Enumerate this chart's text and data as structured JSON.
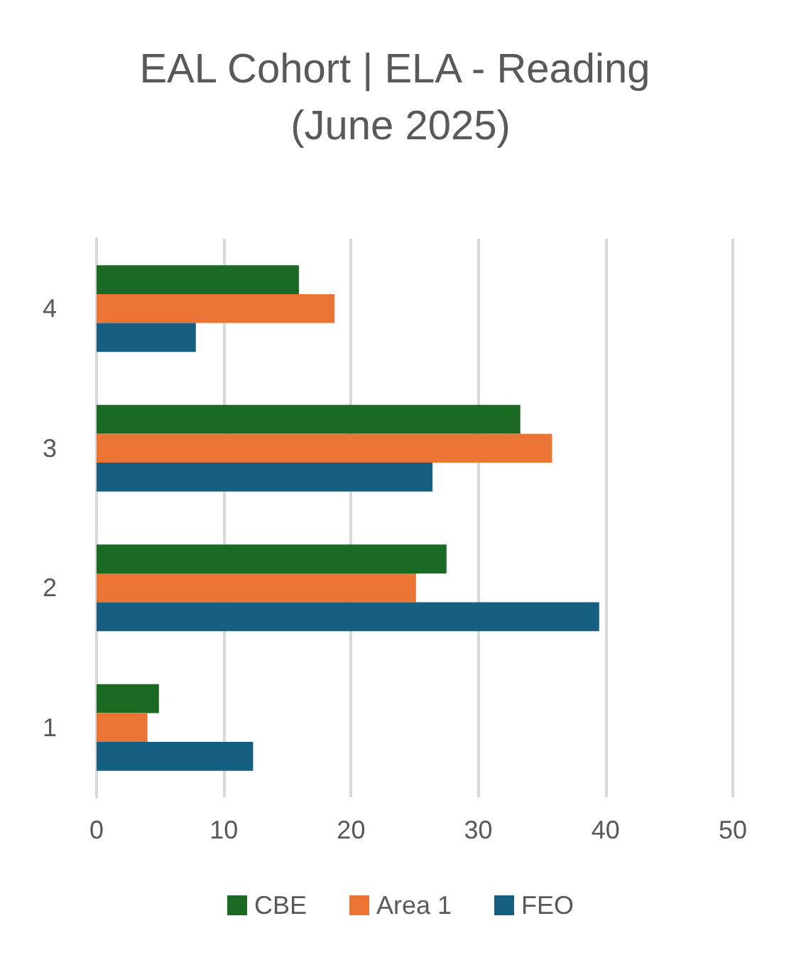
{
  "chart_data": {
    "type": "bar",
    "orientation": "horizontal",
    "title": "EAL Cohort | ELA - Reading (June 2025)",
    "categories": [
      "4",
      "3",
      "2",
      "1"
    ],
    "series": [
      {
        "name": "CBE",
        "color": "#1b6a24",
        "values": [
          15.9,
          33.3,
          27.5,
          4.9
        ]
      },
      {
        "name": "Area 1",
        "color": "#e97434",
        "values": [
          18.7,
          35.8,
          25.1,
          4.0
        ]
      },
      {
        "name": "FEO",
        "color": "#165f80",
        "values": [
          7.8,
          26.4,
          39.5,
          12.3
        ]
      }
    ],
    "xlim": [
      0,
      50
    ],
    "xticks": [
      0,
      10,
      20,
      30,
      40,
      50
    ],
    "grid": "x",
    "legend": "bottom"
  }
}
